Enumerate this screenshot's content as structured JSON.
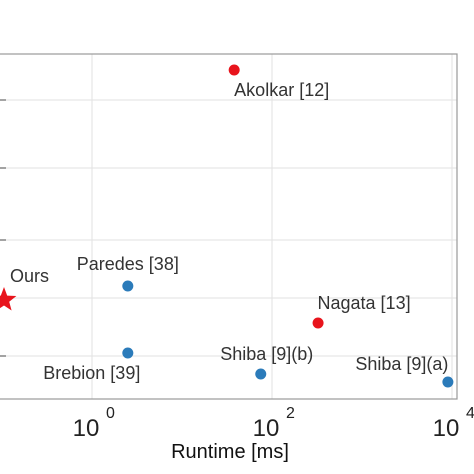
{
  "chart_data": {
    "type": "scatter",
    "xlabel": "Runtime [ms]",
    "x_scale": "log",
    "xlim": [
      0.1,
      10000
    ],
    "grid": true,
    "x_ticks": [
      {
        "value": 1,
        "base": "10",
        "exp": "0"
      },
      {
        "value": 100,
        "base": "10",
        "exp": "2"
      },
      {
        "value": 10000,
        "base": "10",
        "exp": "4"
      }
    ],
    "points": [
      {
        "label": "Akolkar [12]",
        "x": 38,
        "y": 0.93,
        "color": "#e8141c",
        "marker": "circle"
      },
      {
        "label": "Ours",
        "x": 0.1,
        "y": 0.25,
        "color": "#e8141c",
        "marker": "star"
      },
      {
        "label": "Paredes [38]",
        "x": 2.5,
        "y": 0.28,
        "color": "#2b7bba",
        "marker": "circle"
      },
      {
        "label": "Nagata [13]",
        "x": 325,
        "y": 0.18,
        "color": "#e8141c",
        "marker": "circle"
      },
      {
        "label": "Brebion [39]",
        "x": 2.5,
        "y": 0.1,
        "color": "#2b7bba",
        "marker": "circle"
      },
      {
        "label": "Shiba [9](b)",
        "x": 75,
        "y": 0.04,
        "color": "#2b7bba",
        "marker": "circle"
      },
      {
        "label": "Shiba [9](a)",
        "x": 9000,
        "y": 0.02,
        "color": "#2b7bba",
        "marker": "circle"
      }
    ]
  }
}
